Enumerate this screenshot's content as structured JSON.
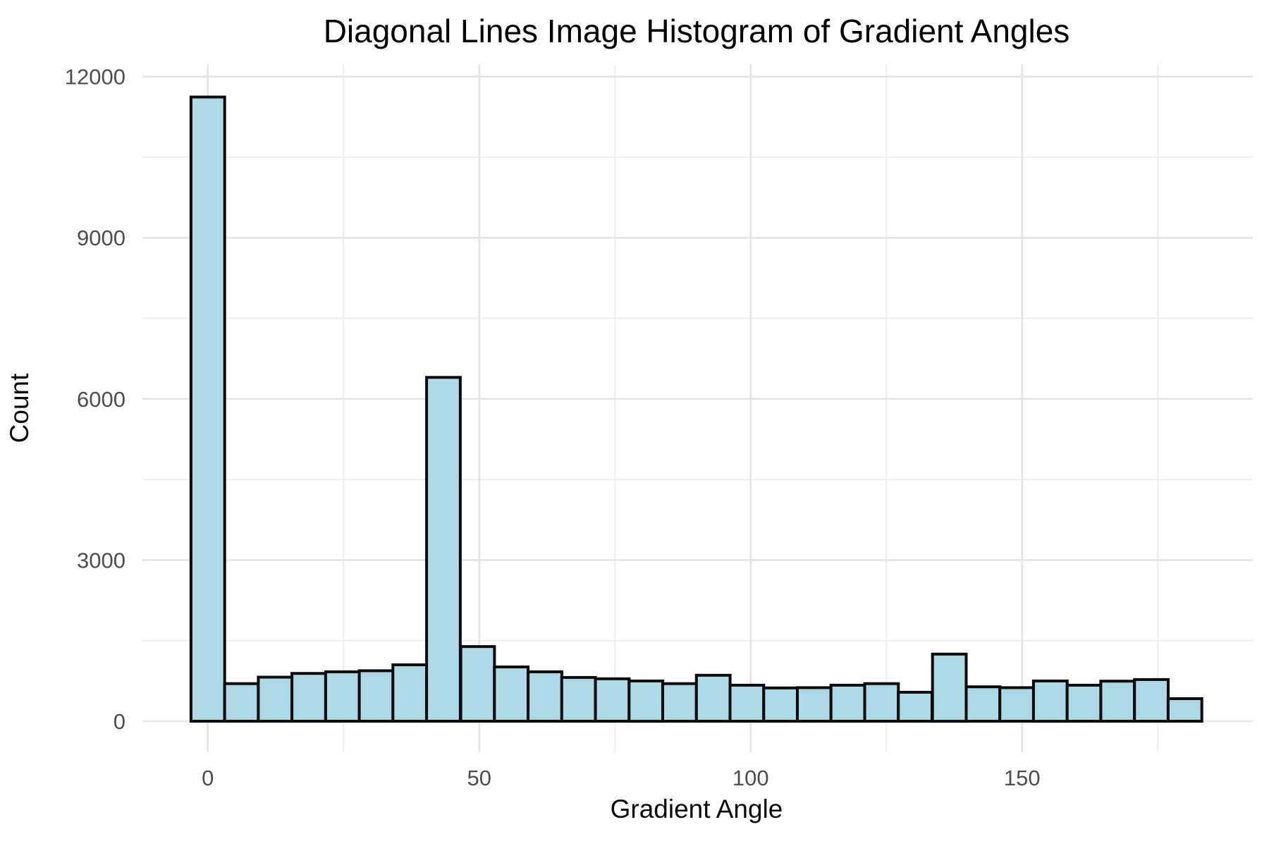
{
  "chart_data": {
    "type": "bar",
    "subtype": "histogram",
    "title": "Diagonal Lines Image Histogram of Gradient Angles",
    "xlabel": "Gradient Angle",
    "ylabel": "Count",
    "grid": true,
    "legend": "none",
    "xlim": [
      -12.3,
      192.3
    ],
    "ylim": [
      -582,
      12228
    ],
    "x_major_ticks": [
      0,
      50,
      100,
      150
    ],
    "x_minor_ticks": [
      25,
      75,
      125,
      175
    ],
    "y_major_ticks": [
      0,
      3000,
      6000,
      9000,
      12000
    ],
    "y_minor_ticks": [
      1500,
      4500,
      7500,
      10500
    ],
    "bin_width": 6.207,
    "bin_centers": [
      0,
      6.2,
      12.4,
      18.6,
      24.8,
      31.0,
      37.2,
      43.4,
      49.7,
      55.9,
      62.1,
      68.3,
      74.5,
      80.7,
      86.9,
      93.1,
      99.3,
      105.5,
      111.7,
      117.9,
      124.1,
      130.3,
      136.6,
      142.8,
      149.0,
      155.2,
      161.4,
      167.6,
      173.8,
      180.0
    ],
    "values": [
      11620,
      700,
      820,
      890,
      920,
      940,
      1050,
      6400,
      1390,
      1010,
      920,
      815,
      790,
      750,
      700,
      855,
      670,
      620,
      625,
      670,
      700,
      540,
      1250,
      640,
      625,
      750,
      670,
      745,
      775,
      420
    ],
    "colors": {
      "bar_fill": "#ADD8E6",
      "bar_stroke": "#0a0a0a",
      "major_grid": "#e3e3e3",
      "minor_grid": "#ededed",
      "tick_label": "#4d4d4d",
      "title_text": "#000000",
      "axis_title_text": "#0a0a0a",
      "background": "#ffffff"
    }
  }
}
